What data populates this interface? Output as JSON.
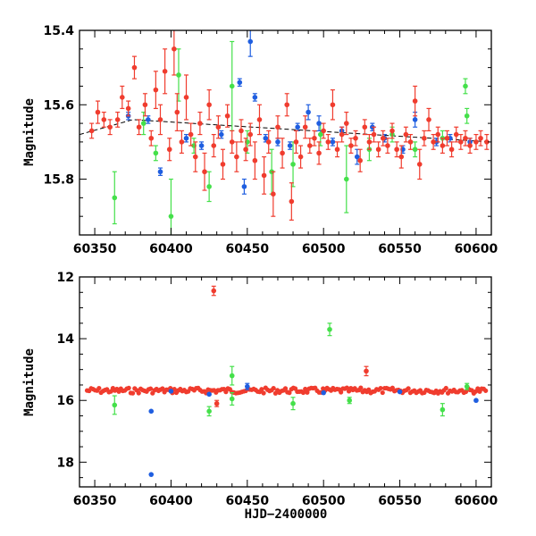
{
  "colors": {
    "blue": "#1f5ee0",
    "green": "#44e04a",
    "red": "#f03c2e",
    "axis": "#000000"
  },
  "chart_data": [
    {
      "type": "scatter",
      "panel": "top",
      "ylabel": "Magnitude",
      "xlabel": "",
      "xlim": [
        60340,
        60610
      ],
      "ylim": [
        15.4,
        15.95
      ],
      "y_inverted": true,
      "xticks": [
        "60350",
        "60400",
        "60450",
        "60500",
        "60550",
        "60600"
      ],
      "yticks": [
        "15.4",
        "15.6",
        "15.8"
      ],
      "trend_line": [
        [
          60340,
          15.68
        ],
        [
          60375,
          15.64
        ],
        [
          60610,
          15.7
        ]
      ],
      "series": [
        {
          "color": "blue",
          "points": [
            [
              60372,
              15.63,
              0.01
            ],
            [
              60385,
              15.64,
              0.01
            ],
            [
              60393,
              15.78,
              0.01
            ],
            [
              60410,
              15.69,
              0.01
            ],
            [
              60420,
              15.71,
              0.01
            ],
            [
              60445,
              15.54,
              0.01
            ],
            [
              60452,
              15.43,
              0.04
            ],
            [
              60455,
              15.58,
              0.01
            ],
            [
              60462,
              15.69,
              0.01
            ],
            [
              60470,
              15.7,
              0.01
            ],
            [
              60478,
              15.71,
              0.01
            ],
            [
              60483,
              15.66,
              0.01
            ],
            [
              60490,
              15.62,
              0.02
            ],
            [
              60497,
              15.65,
              0.02
            ],
            [
              60506,
              15.7,
              0.01
            ],
            [
              60512,
              15.67,
              0.01
            ],
            [
              60522,
              15.74,
              0.02
            ],
            [
              60532,
              15.66,
              0.01
            ],
            [
              60540,
              15.69,
              0.01
            ],
            [
              60552,
              15.72,
              0.01
            ],
            [
              60560,
              15.64,
              0.02
            ],
            [
              60574,
              15.7,
              0.01
            ],
            [
              60583,
              15.69,
              0.01
            ],
            [
              60596,
              15.7,
              0.01
            ],
            [
              60448,
              15.82,
              0.02
            ],
            [
              60433,
              15.68,
              0.01
            ]
          ]
        },
        {
          "color": "green",
          "points": [
            [
              60363,
              15.85,
              0.07
            ],
            [
              60382,
              15.65,
              0.03
            ],
            [
              60390,
              15.73,
              0.02
            ],
            [
              60400,
              15.9,
              0.1
            ],
            [
              60405,
              15.52,
              0.07
            ],
            [
              60415,
              15.71,
              0.02
            ],
            [
              60425,
              15.82,
              0.04
            ],
            [
              60440,
              15.55,
              0.12
            ],
            [
              60450,
              15.7,
              0.03
            ],
            [
              60466,
              15.78,
              0.06
            ],
            [
              60480,
              15.76,
              0.06
            ],
            [
              60498,
              15.68,
              0.03
            ],
            [
              60515,
              15.8,
              0.09
            ],
            [
              60530,
              15.72,
              0.03
            ],
            [
              60545,
              15.68,
              0.02
            ],
            [
              60560,
              15.72,
              0.02
            ],
            [
              60578,
              15.69,
              0.02
            ],
            [
              60593,
              15.55,
              0.02
            ],
            [
              60594,
              15.63,
              0.02
            ]
          ]
        },
        {
          "color": "red",
          "points": [
            [
              60348,
              15.67,
              0.02
            ],
            [
              60352,
              15.62,
              0.03
            ],
            [
              60356,
              15.64,
              0.02
            ],
            [
              60360,
              15.66,
              0.02
            ],
            [
              60365,
              15.64,
              0.02
            ],
            [
              60368,
              15.58,
              0.03
            ],
            [
              60372,
              15.61,
              0.02
            ],
            [
              60376,
              15.5,
              0.03
            ],
            [
              60379,
              15.66,
              0.02
            ],
            [
              60383,
              15.6,
              0.03
            ],
            [
              60387,
              15.69,
              0.02
            ],
            [
              60390,
              15.56,
              0.05
            ],
            [
              60393,
              15.64,
              0.04
            ],
            [
              60396,
              15.51,
              0.06
            ],
            [
              60399,
              15.72,
              0.03
            ],
            [
              60402,
              15.45,
              0.07
            ],
            [
              60404,
              15.62,
              0.05
            ],
            [
              60407,
              15.7,
              0.03
            ],
            [
              60410,
              15.58,
              0.06
            ],
            [
              60413,
              15.68,
              0.03
            ],
            [
              60416,
              15.74,
              0.04
            ],
            [
              60419,
              15.65,
              0.03
            ],
            [
              60422,
              15.78,
              0.05
            ],
            [
              60425,
              15.6,
              0.04
            ],
            [
              60428,
              15.71,
              0.03
            ],
            [
              60431,
              15.66,
              0.03
            ],
            [
              60434,
              15.76,
              0.04
            ],
            [
              60437,
              15.63,
              0.03
            ],
            [
              60440,
              15.7,
              0.03
            ],
            [
              60443,
              15.74,
              0.04
            ],
            [
              60446,
              15.67,
              0.03
            ],
            [
              60449,
              15.72,
              0.03
            ],
            [
              60452,
              15.68,
              0.03
            ],
            [
              60455,
              15.75,
              0.05
            ],
            [
              60458,
              15.64,
              0.04
            ],
            [
              60461,
              15.79,
              0.05
            ],
            [
              60464,
              15.7,
              0.03
            ],
            [
              60467,
              15.84,
              0.06
            ],
            [
              60470,
              15.66,
              0.03
            ],
            [
              60473,
              15.73,
              0.04
            ],
            [
              60476,
              15.6,
              0.03
            ],
            [
              60479,
              15.86,
              0.05
            ],
            [
              60482,
              15.7,
              0.03
            ],
            [
              60485,
              15.74,
              0.03
            ],
            [
              60488,
              15.66,
              0.03
            ],
            [
              60491,
              15.71,
              0.02
            ],
            [
              60494,
              15.69,
              0.02
            ],
            [
              60497,
              15.73,
              0.03
            ],
            [
              60500,
              15.67,
              0.02
            ],
            [
              60503,
              15.7,
              0.02
            ],
            [
              60506,
              15.6,
              0.04
            ],
            [
              60509,
              15.72,
              0.02
            ],
            [
              60512,
              15.68,
              0.02
            ],
            [
              60515,
              15.65,
              0.03
            ],
            [
              60518,
              15.71,
              0.02
            ],
            [
              60521,
              15.69,
              0.02
            ],
            [
              60524,
              15.75,
              0.03
            ],
            [
              60527,
              15.66,
              0.02
            ],
            [
              60530,
              15.7,
              0.02
            ],
            [
              60533,
              15.68,
              0.02
            ],
            [
              60536,
              15.72,
              0.02
            ],
            [
              60539,
              15.69,
              0.02
            ],
            [
              60542,
              15.71,
              0.02
            ],
            [
              60545,
              15.67,
              0.02
            ],
            [
              60548,
              15.72,
              0.02
            ],
            [
              60551,
              15.74,
              0.03
            ],
            [
              60554,
              15.68,
              0.02
            ],
            [
              60557,
              15.7,
              0.02
            ],
            [
              60560,
              15.59,
              0.04
            ],
            [
              60563,
              15.76,
              0.04
            ],
            [
              60566,
              15.69,
              0.02
            ],
            [
              60569,
              15.64,
              0.03
            ],
            [
              60572,
              15.7,
              0.02
            ],
            [
              60575,
              15.68,
              0.02
            ],
            [
              60578,
              15.71,
              0.02
            ],
            [
              60581,
              15.69,
              0.02
            ],
            [
              60584,
              15.72,
              0.02
            ],
            [
              60587,
              15.68,
              0.02
            ],
            [
              60590,
              15.7,
              0.02
            ],
            [
              60593,
              15.69,
              0.02
            ],
            [
              60596,
              15.71,
              0.02
            ],
            [
              60600,
              15.7,
              0.02
            ],
            [
              60603,
              15.69,
              0.02
            ],
            [
              60607,
              15.7,
              0.02
            ]
          ]
        }
      ]
    },
    {
      "type": "scatter",
      "panel": "bottom",
      "ylabel": "Magnitude",
      "xlabel": "HJD−2400000",
      "xlim": [
        60340,
        60610
      ],
      "ylim": [
        12,
        18.8
      ],
      "y_inverted": true,
      "xticks": [
        "60350",
        "60400",
        "60450",
        "60500",
        "60550",
        "60600"
      ],
      "yticks": [
        "12",
        "14",
        "16",
        "18"
      ],
      "series": [
        {
          "color": "blue",
          "points": [
            [
              60387,
              16.35,
              0
            ],
            [
              60387,
              18.4,
              0
            ],
            [
              60400,
              15.7,
              0
            ],
            [
              60450,
              15.55,
              0.1
            ],
            [
              60500,
              15.75,
              0
            ],
            [
              60550,
              15.72,
              0
            ],
            [
              60600,
              16.0,
              0
            ],
            [
              60425,
              15.8,
              0
            ]
          ]
        },
        {
          "color": "green",
          "points": [
            [
              60363,
              16.15,
              0.3
            ],
            [
              60425,
              16.35,
              0.15
            ],
            [
              60440,
              15.2,
              0.3
            ],
            [
              60440,
              15.95,
              0.2
            ],
            [
              60480,
              16.1,
              0.2
            ],
            [
              60504,
              13.7,
              0.2
            ],
            [
              60517,
              16.0,
              0.1
            ],
            [
              60578,
              16.3,
              0.2
            ],
            [
              60594,
              15.55,
              0.1
            ]
          ]
        },
        {
          "color": "red",
          "points": [
            [
              60428,
              12.45,
              0.15
            ],
            [
              60528,
              15.05,
              0.15
            ],
            [
              60430,
              16.1,
              0.1
            ]
          ]
        }
      ],
      "band": {
        "color": "red",
        "y_center": 15.68,
        "x_from": 60345,
        "x_to": 60607
      }
    }
  ]
}
